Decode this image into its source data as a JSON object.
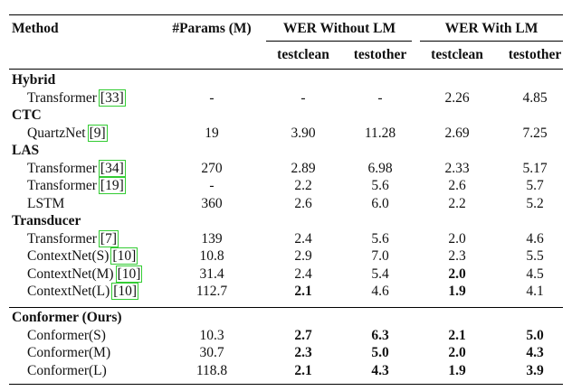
{
  "header": {
    "method": "Method",
    "params": "#Params (M)",
    "wer_without_lm": "WER Without LM",
    "wer_with_lm": "WER With LM",
    "sub_headers": [
      "testclean",
      "testother",
      "testclean",
      "testother"
    ]
  },
  "groups": [
    {
      "name": "Hybrid",
      "rows": [
        {
          "method": "Transformer",
          "cite": "[33]",
          "params": "-",
          "cells": [
            "-",
            "-",
            "2.26",
            "4.85"
          ],
          "bold": [
            false,
            false,
            false,
            false
          ]
        }
      ]
    },
    {
      "name": "CTC",
      "rows": [
        {
          "method": "QuartzNet",
          "cite": "[9]",
          "params": "19",
          "cells": [
            "3.90",
            "11.28",
            "2.69",
            "7.25"
          ],
          "bold": [
            false,
            false,
            false,
            false
          ]
        }
      ]
    },
    {
      "name": "LAS",
      "rows": [
        {
          "method": "Transformer",
          "cite": "[34]",
          "params": "270",
          "cells": [
            "2.89",
            "6.98",
            "2.33",
            "5.17"
          ],
          "bold": [
            false,
            false,
            false,
            false
          ]
        },
        {
          "method": "Transformer",
          "cite": "[19]",
          "params": "-",
          "cells": [
            "2.2",
            "5.6",
            "2.6",
            "5.7"
          ],
          "bold": [
            false,
            false,
            false,
            false
          ]
        },
        {
          "method": "LSTM",
          "cite": "",
          "params": "360",
          "cells": [
            "2.6",
            "6.0",
            "2.2",
            "5.2"
          ],
          "bold": [
            false,
            false,
            false,
            false
          ]
        }
      ]
    },
    {
      "name": "Transducer",
      "rows": [
        {
          "method": "Transformer",
          "cite": "[7]",
          "params": "139",
          "cells": [
            "2.4",
            "5.6",
            "2.0",
            "4.6"
          ],
          "bold": [
            false,
            false,
            false,
            false
          ]
        },
        {
          "method": "ContextNet(S)",
          "cite": "[10]",
          "params": "10.8",
          "cells": [
            "2.9",
            "7.0",
            "2.3",
            "5.5"
          ],
          "bold": [
            false,
            false,
            false,
            false
          ]
        },
        {
          "method": "ContextNet(M)",
          "cite": "[10]",
          "params": "31.4",
          "cells": [
            "2.4",
            "5.4",
            "2.0",
            "4.5"
          ],
          "bold": [
            false,
            false,
            true,
            false
          ]
        },
        {
          "method": "ContextNet(L)",
          "cite": "[10]",
          "params": "112.7",
          "cells": [
            "2.1",
            "4.6",
            "1.9",
            "4.1"
          ],
          "bold": [
            true,
            false,
            true,
            false
          ]
        }
      ]
    },
    {
      "name": "Conformer (Ours)",
      "rows": [
        {
          "method": "Conformer(S)",
          "cite": "",
          "params": "10.3",
          "cells": [
            "2.7",
            "6.3",
            "2.1",
            "5.0"
          ],
          "bold": [
            true,
            true,
            true,
            true
          ]
        },
        {
          "method": "Conformer(M)",
          "cite": "",
          "params": "30.7",
          "cells": [
            "2.3",
            "5.0",
            "2.0",
            "4.3"
          ],
          "bold": [
            true,
            true,
            true,
            true
          ]
        },
        {
          "method": "Conformer(L)",
          "cite": "",
          "params": "118.8",
          "cells": [
            "2.1",
            "4.3",
            "1.9",
            "3.9"
          ],
          "bold": [
            true,
            true,
            true,
            true
          ]
        }
      ]
    }
  ]
}
